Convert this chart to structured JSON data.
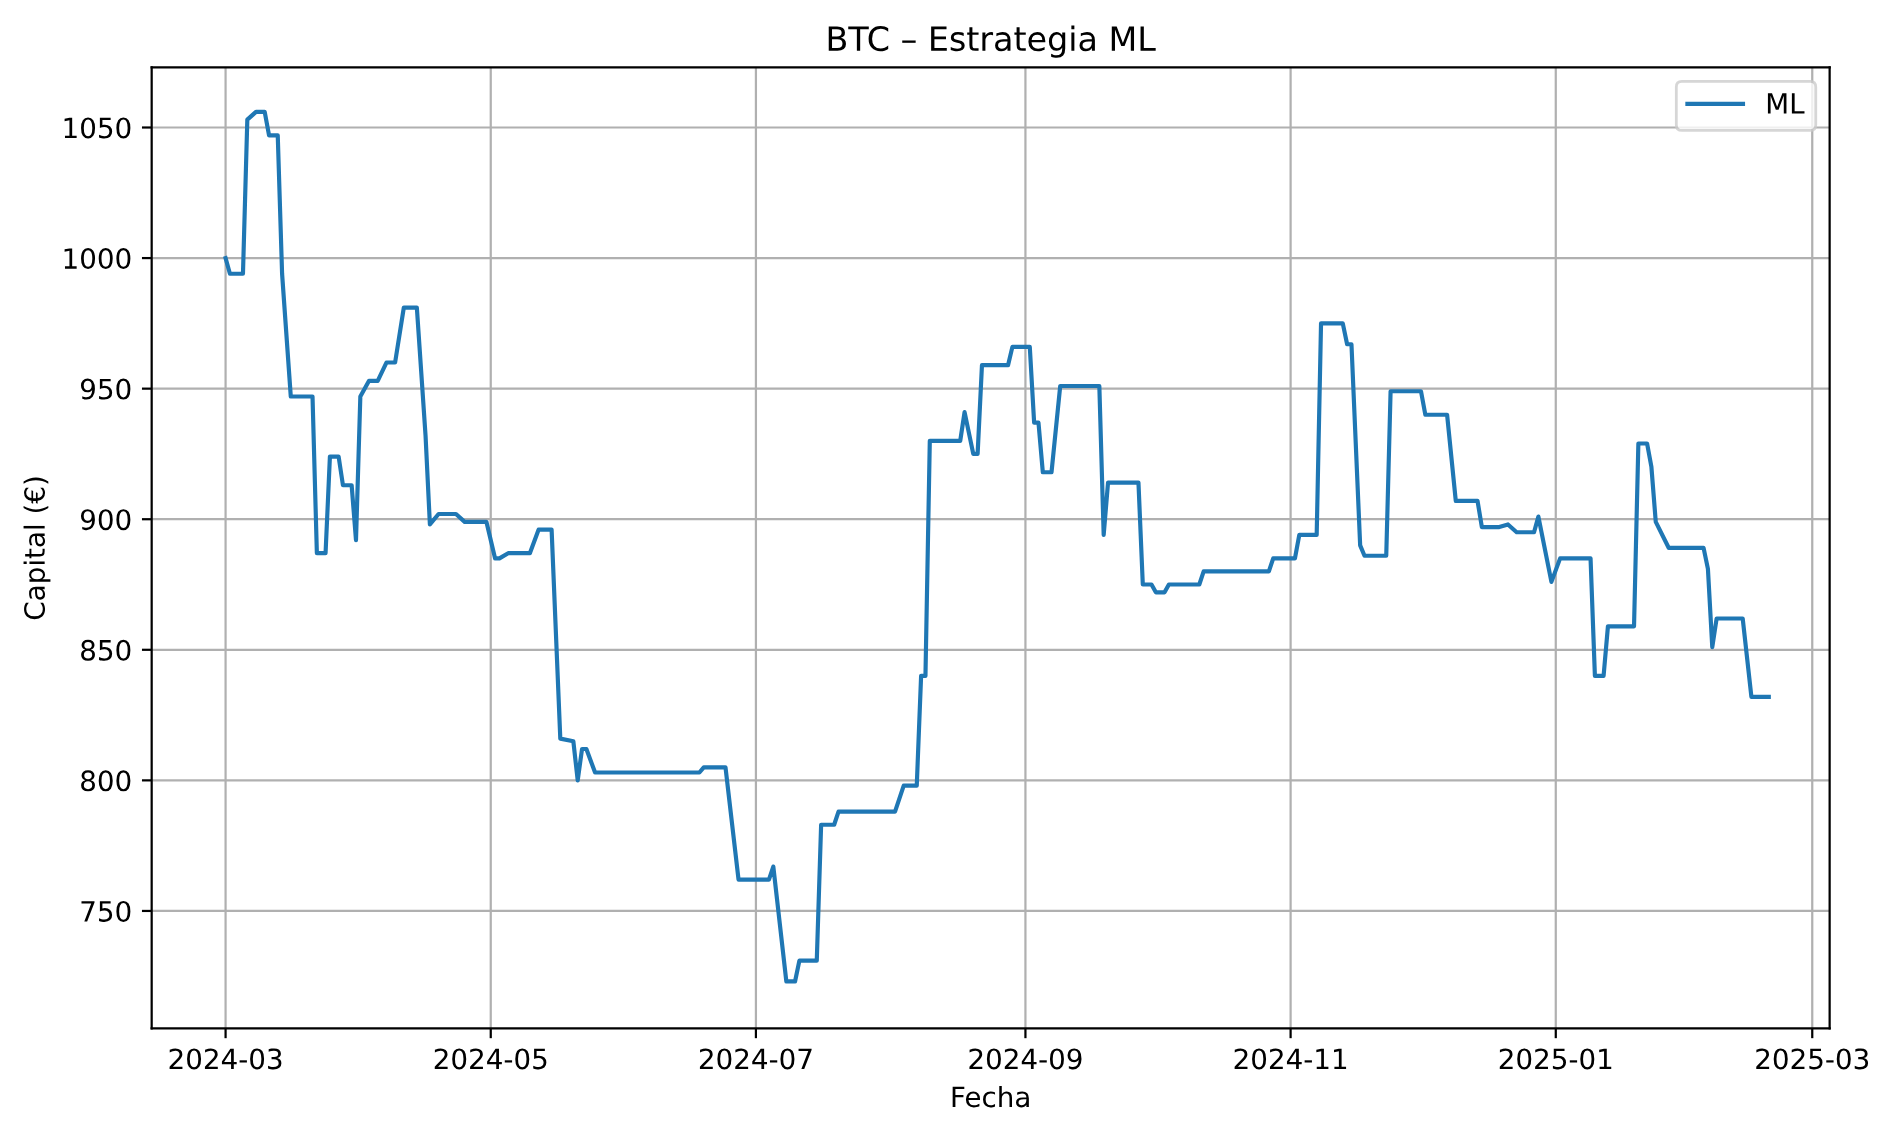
{
  "chart_data": {
    "type": "line",
    "title": "BTC – Estrategia ML",
    "xlabel": "Fecha",
    "ylabel": "Capital (€)",
    "xlim": [
      "2024-02-13",
      "2025-03-05"
    ],
    "ylim": [
      705,
      1073
    ],
    "xticks": [
      {
        "value": "2024-03-01",
        "label": "2024-03"
      },
      {
        "value": "2024-05-01",
        "label": "2024-05"
      },
      {
        "value": "2024-07-01",
        "label": "2024-07"
      },
      {
        "value": "2024-09-01",
        "label": "2024-09"
      },
      {
        "value": "2024-11-01",
        "label": "2024-11"
      },
      {
        "value": "2025-01-01",
        "label": "2025-01"
      },
      {
        "value": "2025-03-01",
        "label": "2025-03"
      }
    ],
    "yticks": [
      750,
      800,
      850,
      900,
      950,
      1000,
      1050
    ],
    "grid": true,
    "legend": "top right",
    "series": [
      {
        "name": "ML",
        "color": "#1f77b4",
        "x": [
          "2024-03-01",
          "2024-03-02",
          "2024-03-05",
          "2024-03-06",
          "2024-03-08",
          "2024-03-10",
          "2024-03-11",
          "2024-03-13",
          "2024-03-14",
          "2024-03-16",
          "2024-03-21",
          "2024-03-22",
          "2024-03-24",
          "2024-03-25",
          "2024-03-27",
          "2024-03-28",
          "2024-03-30",
          "2024-03-31",
          "2024-04-01",
          "2024-04-03",
          "2024-04-05",
          "2024-04-07",
          "2024-04-09",
          "2024-04-11",
          "2024-04-14",
          "2024-04-16",
          "2024-04-17",
          "2024-04-19",
          "2024-04-23",
          "2024-04-25",
          "2024-04-30",
          "2024-05-02",
          "2024-05-03",
          "2024-05-05",
          "2024-05-10",
          "2024-05-12",
          "2024-05-15",
          "2024-05-17",
          "2024-05-20",
          "2024-05-21",
          "2024-05-22",
          "2024-05-23",
          "2024-05-25",
          "2024-06-18",
          "2024-06-19",
          "2024-06-24",
          "2024-06-27",
          "2024-07-04",
          "2024-07-05",
          "2024-07-08",
          "2024-07-10",
          "2024-07-11",
          "2024-07-15",
          "2024-07-16",
          "2024-07-19",
          "2024-07-20",
          "2024-08-02",
          "2024-08-04",
          "2024-08-07",
          "2024-08-08",
          "2024-08-09",
          "2024-08-10",
          "2024-08-17",
          "2024-08-18",
          "2024-08-20",
          "2024-08-21",
          "2024-08-22",
          "2024-08-28",
          "2024-08-29",
          "2024-09-02",
          "2024-09-03",
          "2024-09-04",
          "2024-09-05",
          "2024-09-07",
          "2024-09-09",
          "2024-09-18",
          "2024-09-19",
          "2024-09-20",
          "2024-09-27",
          "2024-09-28",
          "2024-09-30",
          "2024-10-01",
          "2024-10-03",
          "2024-10-04",
          "2024-10-11",
          "2024-10-12",
          "2024-10-20",
          "2024-10-21",
          "2024-10-27",
          "2024-10-28",
          "2024-11-02",
          "2024-11-03",
          "2024-11-07",
          "2024-11-08",
          "2024-11-13",
          "2024-11-14",
          "2024-11-15",
          "2024-11-17",
          "2024-11-18",
          "2024-11-23",
          "2024-11-24",
          "2024-12-01",
          "2024-12-02",
          "2024-12-07",
          "2024-12-09",
          "2024-12-14",
          "2024-12-15",
          "2024-12-19",
          "2024-12-21",
          "2024-12-23",
          "2024-12-27",
          "2024-12-28",
          "2024-12-31",
          "2025-01-02",
          "2025-01-09",
          "2025-01-10",
          "2025-01-12",
          "2025-01-13",
          "2025-01-19",
          "2025-01-20",
          "2025-01-22",
          "2025-01-23",
          "2025-01-24",
          "2025-01-27",
          "2025-02-04",
          "2025-02-05",
          "2025-02-06",
          "2025-02-07",
          "2025-02-13",
          "2025-02-15",
          "2025-02-19"
        ],
        "values": [
          1000,
          994,
          994,
          1053,
          1056,
          1056,
          1047,
          1047,
          994,
          947,
          947,
          887,
          887,
          924,
          924,
          913,
          913,
          892,
          947,
          953,
          953,
          960,
          960,
          981,
          981,
          932,
          898,
          902,
          902,
          899,
          899,
          885,
          885,
          887,
          887,
          896,
          896,
          816,
          815,
          800,
          812,
          812,
          803,
          803,
          805,
          805,
          762,
          762,
          767,
          723,
          723,
          731,
          731,
          783,
          783,
          788,
          788,
          798,
          798,
          840,
          840,
          930,
          930,
          941,
          925,
          925,
          959,
          959,
          966,
          966,
          937,
          937,
          918,
          918,
          951,
          951,
          894,
          914,
          914,
          875,
          875,
          872,
          872,
          875,
          875,
          880,
          880,
          880,
          880,
          885,
          885,
          894,
          894,
          975,
          975,
          967,
          967,
          890,
          886,
          886,
          949,
          949,
          940,
          940,
          907,
          907,
          897,
          897,
          898,
          895,
          895,
          901,
          876,
          885,
          885,
          840,
          840,
          859,
          859,
          929,
          929,
          920,
          899,
          889,
          889,
          881,
          851,
          862,
          862,
          832,
          832
        ]
      }
    ]
  }
}
